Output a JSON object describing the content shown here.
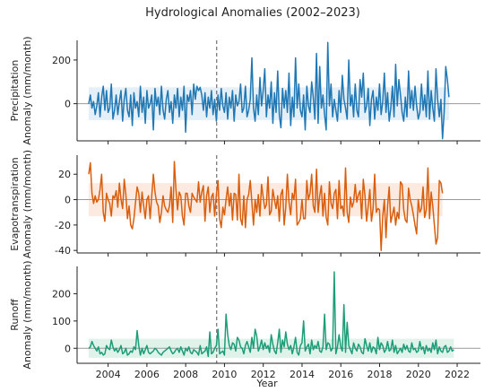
{
  "chart_data": {
    "title": "Hydrological Anomalies (2002–2023)",
    "xlabel": "Year",
    "x_range": [
      2002.4,
      2023.2
    ],
    "x_ticks": [
      2004,
      2006,
      2008,
      2010,
      2012,
      2014,
      2016,
      2018,
      2020,
      2022
    ],
    "vline_x": 2009.6,
    "grid": false,
    "legend": "none",
    "panels": [
      {
        "type": "line",
        "name": "precipitation",
        "ylabel_lines": [
          "Precipitation",
          "Anomaly (mm/month)"
        ],
        "color": "#1f77b4",
        "band_color": "#dbe9f4",
        "band": [
          -75,
          75
        ],
        "ylim": [
          -170,
          290
        ],
        "yticks": [
          0,
          200
        ],
        "x_start": 2003.0,
        "x_step": 0.0833,
        "values": [
          0,
          40,
          -20,
          10,
          -50,
          -10,
          50,
          -60,
          30,
          80,
          -30,
          60,
          -40,
          -20,
          90,
          -70,
          -30,
          40,
          -50,
          10,
          60,
          -80,
          20,
          70,
          -30,
          -60,
          40,
          -100,
          50,
          -20,
          10,
          -60,
          80,
          -40,
          30,
          -90,
          60,
          -20,
          0,
          40,
          -120,
          70,
          -10,
          30,
          -50,
          80,
          -30,
          -70,
          20,
          60,
          -40,
          10,
          -90,
          40,
          -20,
          70,
          -60,
          30,
          -30,
          80,
          -130,
          40,
          10,
          60,
          -50,
          90,
          20,
          80,
          60,
          75,
          40,
          -30,
          50,
          -60,
          30,
          -20,
          60,
          -50,
          20,
          -80,
          40,
          -30,
          70,
          -10,
          -40,
          50,
          -70,
          30,
          -20,
          60,
          -80,
          40,
          -10,
          10,
          90,
          -40,
          -20,
          80,
          -60,
          -30,
          20,
          210,
          -20,
          -80,
          40,
          -50,
          120,
          -10,
          60,
          160,
          -60,
          40,
          -20,
          100,
          -90,
          50,
          -40,
          150,
          -50,
          -110,
          70,
          -20,
          60,
          -40,
          140,
          -100,
          30,
          -60,
          210,
          -20,
          90,
          -30,
          -60,
          40,
          -120,
          80,
          -10,
          -40,
          100,
          30,
          -70,
          230,
          -90,
          170,
          -20,
          40,
          -50,
          -120,
          280,
          -10,
          90,
          -60,
          20,
          -30,
          -80,
          60,
          -40,
          130,
          20,
          -20,
          -70,
          200,
          -10,
          40,
          -60,
          90,
          -30,
          -60,
          110,
          30,
          140,
          -40,
          -10,
          70,
          -100,
          20,
          60,
          -70,
          30,
          -30,
          90,
          -50,
          10,
          140,
          -40,
          50,
          -80,
          -20,
          80,
          -60,
          180,
          -10,
          110,
          40,
          -40,
          -80,
          30,
          -60,
          150,
          -20,
          60,
          -30,
          80,
          -10,
          -70,
          -40,
          90,
          -30,
          40,
          -60,
          150,
          -70,
          60,
          -20,
          -80,
          160,
          20,
          -60,
          20,
          -160,
          -40,
          170,
          110,
          30
        ]
      },
      {
        "type": "line",
        "name": "evapotranspiration",
        "ylabel_lines": [
          "Evapotranspiration",
          "Anomaly (mm/month)"
        ],
        "color": "#d95f0e",
        "band_color": "#fbe3d6",
        "band": [
          -13,
          13
        ],
        "ylim": [
          -42,
          35
        ],
        "yticks": [
          20,
          0,
          -20,
          -40
        ],
        "x_start": 2003.0,
        "x_step": 0.0833,
        "values": [
          20,
          29,
          5,
          -3,
          3,
          -2,
          0,
          8,
          20,
          -10,
          -17,
          5,
          0,
          -3,
          -13,
          3,
          1,
          7,
          -6,
          13,
          0,
          -7,
          16,
          4,
          -15,
          -5,
          -20,
          -23,
          -15,
          -2,
          10,
          5,
          -10,
          6,
          -5,
          -15,
          0,
          3,
          -15,
          3,
          20,
          6,
          -2,
          -5,
          -18,
          -10,
          3,
          -5,
          -8,
          -10,
          -5,
          10,
          -18,
          30,
          8,
          -8,
          6,
          3,
          -13,
          -20,
          5,
          5,
          -5,
          -10,
          5,
          2,
          0,
          -2,
          14,
          -2,
          6,
          11,
          -17,
          3,
          10,
          -10,
          2,
          5,
          -13,
          4,
          15,
          -15,
          -22,
          -6,
          -12,
          0,
          10,
          -5,
          5,
          -16,
          5,
          4,
          -16,
          20,
          -15,
          -20,
          3,
          -22,
          0,
          4,
          15,
          -2,
          -20,
          0,
          -10,
          4,
          -13,
          12,
          2,
          -7,
          -4,
          18,
          -12,
          -9,
          8,
          0,
          -7,
          3,
          -17,
          4,
          8,
          -20,
          -6,
          20,
          -2,
          -12,
          5,
          0,
          16,
          -20,
          -18,
          -15,
          0,
          -15,
          -15,
          15,
          0,
          5,
          20,
          -5,
          -10,
          24,
          -10,
          3,
          11,
          -13,
          5,
          -14,
          -20,
          14,
          -3,
          -7,
          5,
          8,
          -15,
          15,
          -7,
          -5,
          -13,
          25,
          -10,
          -18,
          2,
          -6,
          -2,
          12,
          -2,
          4,
          7,
          -15,
          16,
          3,
          -17,
          -5,
          8,
          -17,
          -7,
          20,
          -10,
          -7,
          -8,
          -40,
          -13,
          0,
          -30,
          -5,
          10,
          -18,
          -12,
          -6,
          -20,
          -10,
          -15,
          14,
          12,
          -8,
          -16,
          -18,
          9,
          0,
          -5,
          -12,
          -20,
          -27,
          0,
          -10,
          -7,
          10,
          -14,
          -8,
          25,
          -15,
          6,
          -5,
          -20,
          -35,
          -30,
          15,
          13,
          5
        ]
      },
      {
        "type": "line",
        "name": "runoff",
        "ylabel_lines": [
          "Runoff",
          "Anomaly (mm/month)"
        ],
        "color": "#1b9e77",
        "band_color": "#d6efe4",
        "band": [
          -35,
          35
        ],
        "ylim": [
          -55,
          300
        ],
        "yticks": [
          0,
          100,
          200
        ],
        "x_start": 2003.0,
        "x_step": 0.0833,
        "values": [
          0,
          5,
          25,
          10,
          0,
          -10,
          5,
          -20,
          -15,
          -25,
          -20,
          10,
          0,
          -5,
          30,
          5,
          -10,
          0,
          -15,
          -5,
          10,
          -20,
          -15,
          0,
          -25,
          -20,
          -10,
          -15,
          5,
          -5,
          65,
          10,
          -25,
          0,
          -20,
          -5,
          10,
          -15,
          -20,
          -15,
          -10,
          0,
          -5,
          -15,
          -20,
          -25,
          -15,
          -10,
          -5,
          0,
          5,
          -10,
          -20,
          -15,
          -5,
          0,
          -15,
          5,
          -10,
          -25,
          0,
          -10,
          5,
          -15,
          -20,
          -5,
          -10,
          -15,
          -25,
          10,
          -20,
          -15,
          -10,
          5,
          -30,
          60,
          -20,
          -15,
          0,
          10,
          70,
          -20,
          -15,
          -10,
          -25,
          125,
          50,
          10,
          -5,
          20,
          15,
          -10,
          40,
          30,
          5,
          0,
          -20,
          10,
          25,
          5,
          -15,
          40,
          0,
          70,
          45,
          -10,
          5,
          30,
          -5,
          20,
          0,
          10,
          -15,
          50,
          15,
          -10,
          -20,
          20,
          70,
          -15,
          30,
          5,
          60,
          15,
          -5,
          10,
          -20,
          5,
          40,
          -15,
          -25,
          10,
          20,
          100,
          -10,
          5,
          15,
          -20,
          30,
          -5,
          10,
          0,
          25,
          -10,
          -15,
          5,
          125,
          -5,
          20,
          15,
          -10,
          0,
          280,
          -20,
          5,
          50,
          5,
          -10,
          160,
          -15,
          95,
          10,
          -5,
          -20,
          20,
          0,
          -10,
          15,
          5,
          -15,
          -20,
          35,
          10,
          -10,
          20,
          -15,
          5,
          0,
          -20,
          40,
          -5,
          20,
          10,
          -15,
          -5,
          25,
          -10,
          -5,
          30,
          -15,
          10,
          -20,
          -10,
          0,
          -15,
          15,
          -5,
          10,
          -10,
          -15,
          20,
          -5,
          0,
          -15,
          -10,
          25,
          -5,
          5,
          -20,
          10,
          -10,
          0,
          -15,
          20,
          -5,
          30,
          -20,
          5,
          -10,
          -15,
          5,
          10,
          -15,
          -10,
          5,
          -10,
          -5
        ]
      }
    ]
  }
}
